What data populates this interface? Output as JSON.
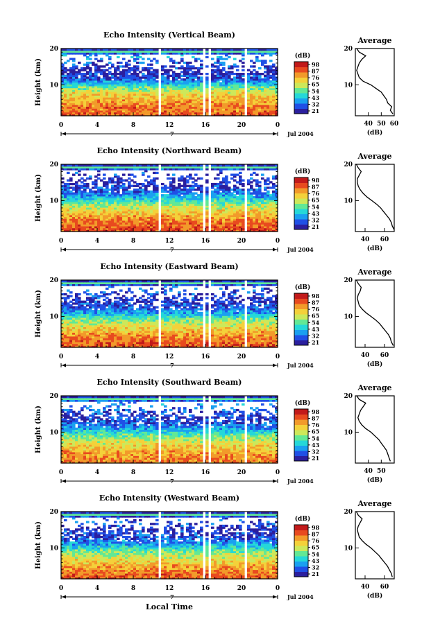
{
  "xlabel": "Local Time",
  "colorbar_unit": "(dB)",
  "colorbar_ticks": [
    "98",
    "87",
    "76",
    "65",
    "54",
    "43",
    "32",
    "21"
  ],
  "colorbar_colors": [
    "#2b1f9e",
    "#2050e6",
    "#1aa0f0",
    "#25d8d8",
    "#62e895",
    "#cde85a",
    "#f4d13a",
    "#f29a2a",
    "#e84a1f",
    "#c21a1a"
  ],
  "date_label": "Jul 2004",
  "day_label": "7",
  "chart_data": [
    {
      "type": "heatmap",
      "title": "Echo Intensity (Vertical Beam)",
      "ylabel": "Height (km)",
      "xlim": [
        0,
        24
      ],
      "ylim": [
        1.5,
        20
      ],
      "xticks": [
        "0",
        "4",
        "8",
        "12",
        "16",
        "20",
        "0"
      ],
      "yticks": [
        "10",
        "20"
      ],
      "data_gaps_hours": [
        [
          10.9,
          11.2
        ],
        [
          15.7,
          16.0
        ],
        [
          16.3,
          16.6
        ],
        [
          20.2,
          20.5
        ]
      ],
      "average": {
        "title": "Average",
        "xlabel": "(dB)",
        "xlim": [
          30,
          60
        ],
        "xticks": [
          "40",
          "50",
          "60"
        ],
        "height_km": [
          2,
          3,
          4,
          5,
          6,
          7,
          8,
          9,
          10,
          11,
          12,
          13,
          14,
          15,
          16,
          17,
          18,
          19,
          20
        ],
        "db": [
          59,
          57,
          58,
          55,
          54,
          52,
          50,
          46,
          42,
          36,
          33,
          32,
          31,
          32,
          33,
          35,
          38,
          33,
          31
        ]
      }
    },
    {
      "type": "heatmap",
      "title": "Echo Intensity (Northward Beam)",
      "ylabel": "Height (km)",
      "xlim": [
        0,
        24
      ],
      "ylim": [
        1.5,
        20
      ],
      "xticks": [
        "0",
        "4",
        "8",
        "12",
        "16",
        "20",
        "0"
      ],
      "yticks": [
        "10",
        "20"
      ],
      "data_gaps_hours": [
        [
          10.9,
          11.2
        ],
        [
          15.7,
          16.0
        ],
        [
          16.3,
          16.6
        ],
        [
          20.2,
          20.5
        ]
      ],
      "average": {
        "title": "Average",
        "xlabel": "(dB)",
        "xlim": [
          30,
          70
        ],
        "xticks": [
          "40",
          "60"
        ],
        "height_km": [
          2,
          3,
          4,
          5,
          6,
          7,
          8,
          9,
          10,
          11,
          12,
          13,
          14,
          15,
          16,
          17,
          18,
          19,
          20
        ],
        "db": [
          70,
          68,
          67,
          65,
          62,
          59,
          56,
          52,
          47,
          42,
          38,
          35,
          33,
          32,
          32,
          34,
          36,
          33,
          31
        ]
      }
    },
    {
      "type": "heatmap",
      "title": "Echo Intensity (Eastward Beam)",
      "ylabel": "Height (km)",
      "xlim": [
        0,
        24
      ],
      "ylim": [
        1.5,
        20
      ],
      "xticks": [
        "0",
        "4",
        "8",
        "12",
        "16",
        "20",
        "0"
      ],
      "yticks": [
        "10",
        "20"
      ],
      "data_gaps_hours": [
        [
          10.9,
          11.2
        ],
        [
          15.7,
          16.0
        ],
        [
          16.3,
          16.6
        ],
        [
          20.2,
          20.5
        ]
      ],
      "average": {
        "title": "Average",
        "xlabel": "(dB)",
        "xlim": [
          30,
          70
        ],
        "xticks": [
          "40",
          "60"
        ],
        "height_km": [
          2,
          3,
          4,
          5,
          6,
          7,
          8,
          9,
          10,
          11,
          12,
          13,
          14,
          15,
          16,
          17,
          18,
          19,
          20
        ],
        "db": [
          69,
          67,
          66,
          64,
          61,
          58,
          55,
          51,
          46,
          41,
          37,
          34,
          33,
          32,
          33,
          35,
          36,
          33,
          31
        ]
      }
    },
    {
      "type": "heatmap",
      "title": "Echo Intensity (Southward Beam)",
      "ylabel": "Height (km)",
      "xlim": [
        0,
        24
      ],
      "ylim": [
        1.5,
        20
      ],
      "xticks": [
        "0",
        "4",
        "8",
        "12",
        "16",
        "20",
        "0"
      ],
      "yticks": [
        "10",
        "20"
      ],
      "data_gaps_hours": [
        [
          10.9,
          11.2
        ],
        [
          15.7,
          16.0
        ],
        [
          16.3,
          16.6
        ],
        [
          20.2,
          20.5
        ]
      ],
      "average": {
        "title": "Average",
        "xlabel": "(dB)",
        "xlim": [
          30,
          60
        ],
        "xticks": [
          "40",
          "50"
        ],
        "height_km": [
          2,
          3,
          4,
          5,
          6,
          7,
          8,
          9,
          10,
          11,
          12,
          13,
          14,
          15,
          16,
          17,
          18,
          19,
          20
        ],
        "db": [
          57,
          56,
          55,
          54,
          52,
          50,
          48,
          45,
          42,
          38,
          35,
          33,
          32,
          33,
          34,
          36,
          38,
          33,
          31
        ]
      }
    },
    {
      "type": "heatmap",
      "title": "Echo Intensity (Westward Beam)",
      "ylabel": "Height (km)",
      "xlim": [
        0,
        24
      ],
      "ylim": [
        1.5,
        20
      ],
      "xticks": [
        "0",
        "4",
        "8",
        "12",
        "16",
        "20",
        "0"
      ],
      "yticks": [
        "10",
        "20"
      ],
      "data_gaps_hours": [
        [
          10.9,
          11.2
        ],
        [
          15.7,
          16.0
        ],
        [
          16.3,
          16.6
        ],
        [
          20.2,
          20.5
        ]
      ],
      "average": {
        "title": "Average",
        "xlabel": "(dB)",
        "xlim": [
          30,
          70
        ],
        "xticks": [
          "40",
          "60"
        ],
        "height_km": [
          2,
          3,
          4,
          5,
          6,
          7,
          8,
          9,
          10,
          11,
          12,
          13,
          14,
          15,
          16,
          17,
          18,
          19,
          20
        ],
        "db": [
          68,
          67,
          65,
          63,
          60,
          57,
          54,
          50,
          46,
          41,
          37,
          34,
          33,
          32,
          33,
          35,
          37,
          33,
          31
        ]
      }
    }
  ]
}
